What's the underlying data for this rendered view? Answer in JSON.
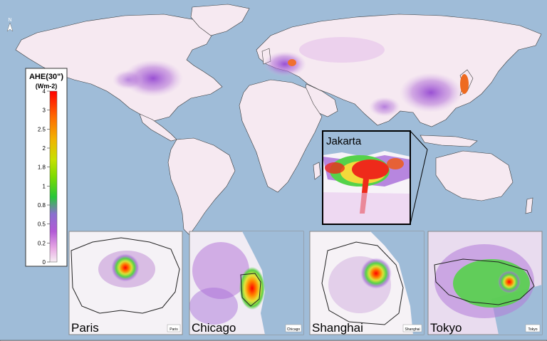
{
  "map": {
    "north_arrow_label": "N",
    "colors": {
      "ocean": "#9fbcd8",
      "land": "#f6e9f1",
      "low": "#c779c9",
      "mid": "#9b4fd0",
      "high": "#ee2a1a",
      "green": "#62d84a",
      "yellow": "#f3d93b"
    }
  },
  "legend": {
    "title": "AHE(30\")",
    "unit": "(Wm-2)",
    "ticks": [
      "4",
      "3",
      "2.5",
      "2",
      "1.8",
      "1",
      "0.8",
      "0.5",
      "0.2",
      "0"
    ],
    "colors": [
      "#ff0000",
      "#ff6a00",
      "#f2b200",
      "#c7e000",
      "#7ddb00",
      "#28c63a",
      "#8a6fcf",
      "#b25ad6",
      "#e8a9e4",
      "#f6eef3"
    ]
  },
  "inset": {
    "title": "Jakarta"
  },
  "panels": [
    {
      "title": "Paris",
      "tag": "Paris"
    },
    {
      "title": "Chicago",
      "tag": "Chicago"
    },
    {
      "title": "Shanghai",
      "tag": "Shanghai"
    },
    {
      "title": "Tokyo",
      "tag": "Tokyo"
    }
  ]
}
